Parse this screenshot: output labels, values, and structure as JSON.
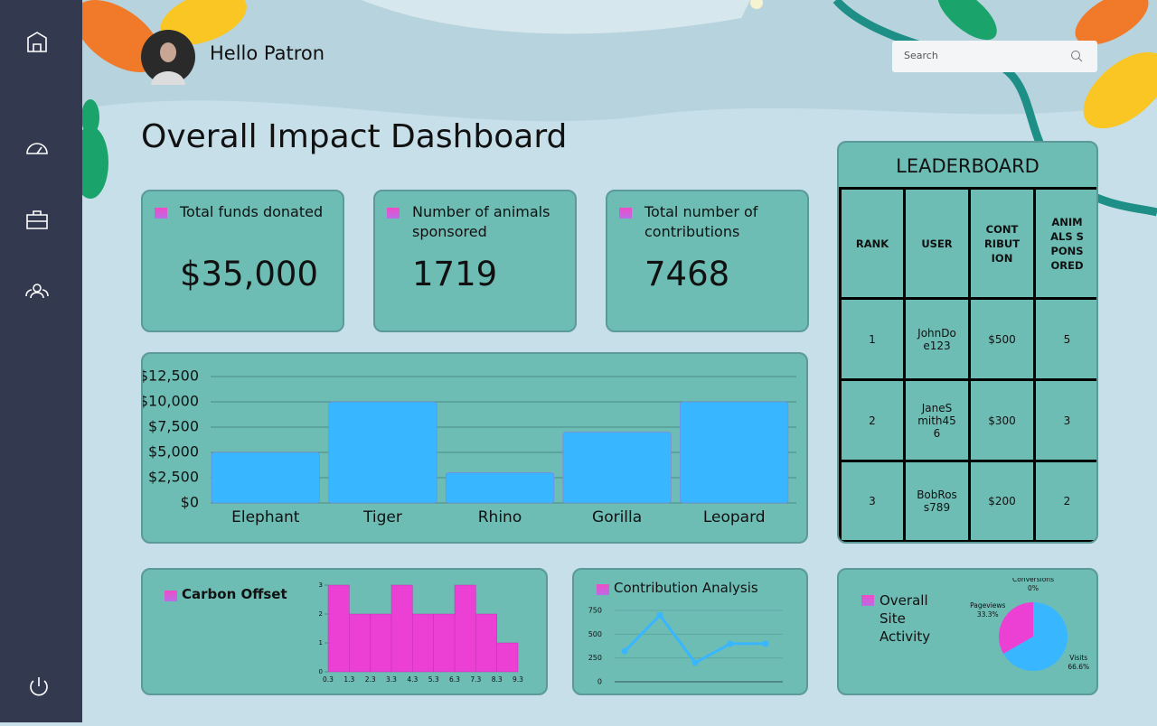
{
  "header": {
    "greeting": "Hello Patron",
    "search_placeholder": "Search"
  },
  "title": "Overall Impact Dashboard",
  "stats": [
    {
      "label": "Total funds donated",
      "value": "$35,000"
    },
    {
      "label": "Number of animals sponsored",
      "value": 1719
    },
    {
      "label": "Total number of contributions",
      "value": 7468
    }
  ],
  "chart_data": [
    {
      "type": "bar",
      "categories": [
        "Elephant",
        "Tiger",
        "Rhino",
        "Gorilla",
        "Leopard"
      ],
      "values": [
        5000,
        10000,
        3000,
        7000,
        10000
      ],
      "color": "#38b6ff",
      "ylim": [
        0,
        12500
      ],
      "yticks": [
        {
          "value": 0,
          "label": "$0"
        },
        {
          "value": 2500,
          "label": "$2,500"
        },
        {
          "value": 5000,
          "label": "$5,000"
        },
        {
          "value": 7500,
          "label": "$7,500"
        },
        {
          "value": 10000,
          "label": "$10,000"
        },
        {
          "value": 12500,
          "label": "$12,500"
        }
      ],
      "grid": true
    },
    {
      "type": "histogram",
      "title": "Carbon Offset",
      "bins": [
        0.3,
        1.3,
        2.3,
        3.3,
        4.3,
        5.3,
        6.3,
        7.3,
        8.3,
        9.3
      ],
      "values": [
        3,
        2,
        2,
        3,
        2,
        2,
        3,
        2,
        1
      ],
      "color": "#ec3fd4",
      "xlim": [
        0.3,
        9.3
      ],
      "ylim": [
        0,
        3
      ],
      "yticks": [
        0,
        1,
        2,
        3
      ]
    },
    {
      "type": "line",
      "title": "Contribution Analysis",
      "values": [
        320,
        700,
        200,
        400,
        400
      ],
      "color": "#38b6ff",
      "ylim": [
        0,
        750
      ],
      "yticks": [
        0,
        250,
        500,
        750
      ],
      "grid": true
    },
    {
      "type": "pie",
      "title": "Overall Site Activity",
      "categories": [
        "Conversions",
        "Pageviews",
        "Visits"
      ],
      "values": [
        0,
        33.3,
        66.6
      ],
      "value_labels": [
        "0%",
        "33.3%",
        "66.6%"
      ],
      "colors": [
        "#f2a93b",
        "#ec3fd4",
        "#38b6ff"
      ]
    }
  ],
  "leaderboard": {
    "title": "LEADERBOARD",
    "columns": [
      "RANK",
      "USER",
      "CONTRIBUTION",
      "ANIMALS SPONSORED"
    ],
    "rows": [
      [
        1,
        "JohnDoe123",
        "$500",
        5
      ],
      [
        2,
        "JaneSmith456",
        "$300",
        3
      ],
      [
        3,
        "BobRoss789",
        "$200",
        2
      ]
    ]
  }
}
